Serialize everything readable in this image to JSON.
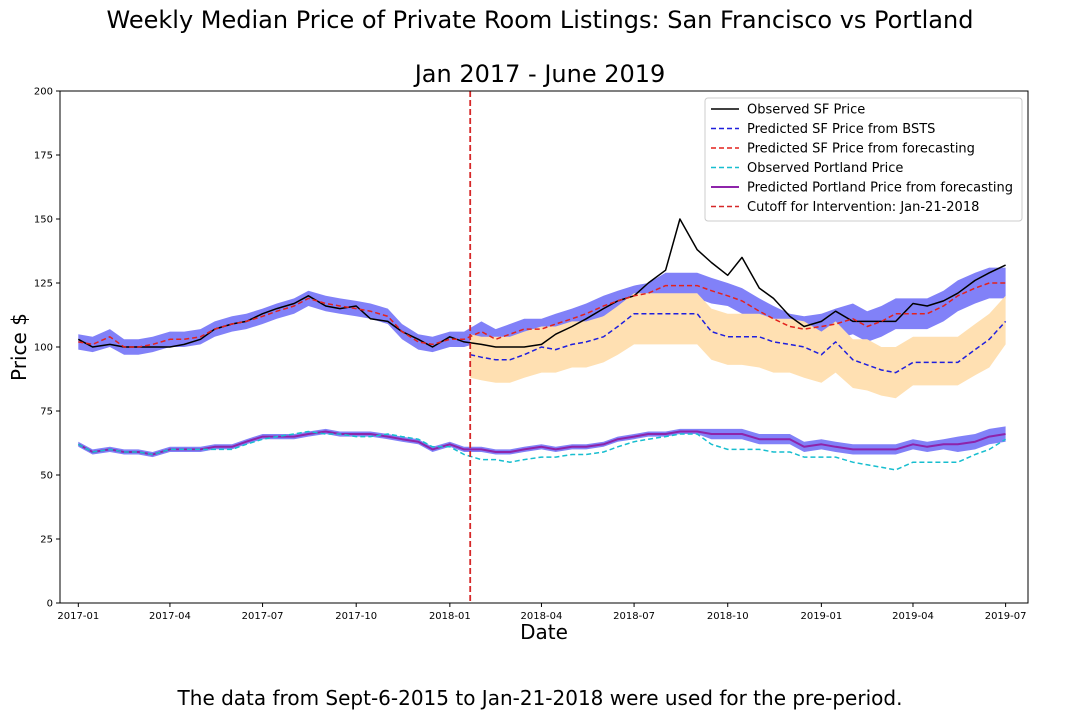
{
  "title_line1": "Weekly Median Price of Private Room Listings: San Francisco vs Portland",
  "title_line2": "Jan 2017 - June 2019",
  "caption": "The data from Sept-6-2015 to Jan-21-2018 were used for the pre-period.",
  "chart_data": {
    "type": "line",
    "xlabel": "Date",
    "ylabel": "Price $",
    "xlim": [
      "2016-12-14",
      "2019-07-23"
    ],
    "ylim": [
      0,
      200
    ],
    "yticks": [
      0,
      25,
      50,
      75,
      100,
      125,
      150,
      175,
      200
    ],
    "xticks": [
      "2017-01",
      "2017-04",
      "2017-07",
      "2017-10",
      "2018-01",
      "2018-04",
      "2018-07",
      "2018-10",
      "2019-01",
      "2019-04",
      "2019-07"
    ],
    "legend_position": "top-right",
    "cutoff": {
      "date": "2018-01-21",
      "label": "Cutoff for Intervention: Jan-21-2018",
      "color": "#d62728"
    },
    "series": [
      {
        "name": "Observed SF Price",
        "color": "#000000",
        "style": "solid",
        "x": [
          "2017-01-01",
          "2017-01-15",
          "2017-02-01",
          "2017-02-15",
          "2017-03-01",
          "2017-03-15",
          "2017-04-01",
          "2017-04-15",
          "2017-05-01",
          "2017-05-15",
          "2017-06-01",
          "2017-06-15",
          "2017-07-01",
          "2017-07-15",
          "2017-08-01",
          "2017-08-15",
          "2017-09-01",
          "2017-09-15",
          "2017-10-01",
          "2017-10-15",
          "2017-11-01",
          "2017-11-15",
          "2017-12-01",
          "2017-12-15",
          "2018-01-01",
          "2018-01-15",
          "2018-02-01",
          "2018-02-15",
          "2018-03-01",
          "2018-03-15",
          "2018-04-01",
          "2018-04-15",
          "2018-05-01",
          "2018-05-15",
          "2018-06-01",
          "2018-06-15",
          "2018-07-01",
          "2018-07-15",
          "2018-08-01",
          "2018-08-15",
          "2018-09-01",
          "2018-09-15",
          "2018-10-01",
          "2018-10-15",
          "2018-11-01",
          "2018-11-15",
          "2018-12-01",
          "2018-12-15",
          "2019-01-01",
          "2019-01-15",
          "2019-02-01",
          "2019-02-15",
          "2019-03-01",
          "2019-03-15",
          "2019-04-01",
          "2019-04-15",
          "2019-05-01",
          "2019-05-15",
          "2019-06-01",
          "2019-06-15",
          "2019-07-01"
        ],
        "values": [
          103,
          100,
          101,
          100,
          100,
          100,
          100,
          101,
          103,
          107,
          109,
          110,
          113,
          115,
          117,
          120,
          116,
          115,
          116,
          111,
          110,
          106,
          103,
          100,
          104,
          102,
          101,
          100,
          100,
          100,
          101,
          105,
          108,
          111,
          115,
          118,
          120,
          125,
          130,
          150,
          138,
          133,
          128,
          135,
          123,
          119,
          112,
          108,
          110,
          114,
          110,
          110,
          110,
          110,
          117,
          116,
          118,
          121,
          126,
          129,
          132
        ]
      },
      {
        "name": "Predicted SF Price from BSTS",
        "color": "#1f1fdd",
        "style": "dashed",
        "x": [
          "2018-01-21",
          "2018-02-01",
          "2018-02-15",
          "2018-03-01",
          "2018-03-15",
          "2018-04-01",
          "2018-04-15",
          "2018-05-01",
          "2018-05-15",
          "2018-06-01",
          "2018-06-15",
          "2018-07-01",
          "2018-07-15",
          "2018-08-01",
          "2018-08-15",
          "2018-09-01",
          "2018-09-15",
          "2018-10-01",
          "2018-10-15",
          "2018-11-01",
          "2018-11-15",
          "2018-12-01",
          "2018-12-15",
          "2019-01-01",
          "2019-01-15",
          "2019-02-01",
          "2019-02-15",
          "2019-03-01",
          "2019-03-15",
          "2019-04-01",
          "2019-04-15",
          "2019-05-01",
          "2019-05-15",
          "2019-06-01",
          "2019-06-15",
          "2019-07-01"
        ],
        "values": [
          97,
          96,
          95,
          95,
          97,
          100,
          99,
          101,
          102,
          104,
          108,
          113,
          113,
          113,
          113,
          113,
          106,
          104,
          104,
          104,
          102,
          101,
          100,
          97,
          102,
          95,
          93,
          91,
          90,
          94,
          94,
          94,
          94,
          99,
          103,
          110
        ]
      },
      {
        "name": "Predicted SF Price from forecasting",
        "color": "#e3221c",
        "style": "dashed",
        "x": [
          "2017-01-01",
          "2017-01-15",
          "2017-02-01",
          "2017-02-15",
          "2017-03-01",
          "2017-03-15",
          "2017-04-01",
          "2017-04-15",
          "2017-05-01",
          "2017-05-15",
          "2017-06-01",
          "2017-06-15",
          "2017-07-01",
          "2017-07-15",
          "2017-08-01",
          "2017-08-15",
          "2017-09-01",
          "2017-09-15",
          "2017-10-01",
          "2017-10-15",
          "2017-11-01",
          "2017-11-15",
          "2017-12-01",
          "2017-12-15",
          "2018-01-01",
          "2018-01-15",
          "2018-02-01",
          "2018-02-15",
          "2018-03-01",
          "2018-03-15",
          "2018-04-01",
          "2018-04-15",
          "2018-05-01",
          "2018-05-15",
          "2018-06-01",
          "2018-06-15",
          "2018-07-01",
          "2018-07-15",
          "2018-08-01",
          "2018-08-15",
          "2018-09-01",
          "2018-09-15",
          "2018-10-01",
          "2018-10-15",
          "2018-11-01",
          "2018-11-15",
          "2018-12-01",
          "2018-12-15",
          "2019-01-01",
          "2019-01-15",
          "2019-02-01",
          "2019-02-15",
          "2019-03-01",
          "2019-03-15",
          "2019-04-01",
          "2019-04-15",
          "2019-05-01",
          "2019-05-15",
          "2019-06-01",
          "2019-06-15",
          "2019-07-01"
        ],
        "values": [
          102,
          101,
          104,
          100,
          100,
          101,
          103,
          103,
          104,
          107,
          109,
          110,
          112,
          114,
          116,
          119,
          117,
          116,
          115,
          114,
          112,
          106,
          102,
          101,
          103,
          103,
          106,
          103,
          105,
          107,
          107,
          109,
          111,
          113,
          116,
          118,
          120,
          121,
          124,
          124,
          124,
          122,
          120,
          118,
          114,
          111,
          108,
          107,
          108,
          109,
          111,
          108,
          110,
          113,
          113,
          113,
          116,
          120,
          123,
          125,
          125
        ]
      },
      {
        "name": "Observed Portland Price",
        "color": "#17becf",
        "style": "dashed",
        "x": [
          "2017-01-01",
          "2017-01-15",
          "2017-02-01",
          "2017-02-15",
          "2017-03-01",
          "2017-03-15",
          "2017-04-01",
          "2017-04-15",
          "2017-05-01",
          "2017-05-15",
          "2017-06-01",
          "2017-06-15",
          "2017-07-01",
          "2017-07-15",
          "2017-08-01",
          "2017-08-15",
          "2017-09-01",
          "2017-09-15",
          "2017-10-01",
          "2017-10-15",
          "2017-11-01",
          "2017-11-15",
          "2017-12-01",
          "2017-12-15",
          "2018-01-01",
          "2018-01-15",
          "2018-02-01",
          "2018-02-15",
          "2018-03-01",
          "2018-03-15",
          "2018-04-01",
          "2018-04-15",
          "2018-05-01",
          "2018-05-15",
          "2018-06-01",
          "2018-06-15",
          "2018-07-01",
          "2018-07-15",
          "2018-08-01",
          "2018-08-15",
          "2018-09-01",
          "2018-09-15",
          "2018-10-01",
          "2018-10-15",
          "2018-11-01",
          "2018-11-15",
          "2018-12-01",
          "2018-12-15",
          "2019-01-01",
          "2019-01-15",
          "2019-02-01",
          "2019-02-15",
          "2019-03-01",
          "2019-03-15",
          "2019-04-01",
          "2019-04-15",
          "2019-05-01",
          "2019-05-15",
          "2019-06-01",
          "2019-06-15",
          "2019-07-01"
        ],
        "values": [
          62,
          59,
          60,
          59,
          59,
          58,
          60,
          60,
          60,
          60,
          60,
          62,
          64,
          65,
          66,
          67,
          66,
          66,
          65,
          65,
          66,
          65,
          64,
          61,
          61,
          58,
          56,
          56,
          55,
          56,
          57,
          57,
          58,
          58,
          59,
          61,
          63,
          64,
          65,
          66,
          66,
          62,
          60,
          60,
          60,
          59,
          59,
          57,
          57,
          57,
          55,
          54,
          53,
          52,
          55,
          55,
          55,
          55,
          58,
          60,
          64
        ]
      },
      {
        "name": "Predicted Portland Price from forecasting",
        "color": "#8e24aa",
        "style": "solid",
        "x": [
          "2017-01-01",
          "2017-01-15",
          "2017-02-01",
          "2017-02-15",
          "2017-03-01",
          "2017-03-15",
          "2017-04-01",
          "2017-04-15",
          "2017-05-01",
          "2017-05-15",
          "2017-06-01",
          "2017-06-15",
          "2017-07-01",
          "2017-07-15",
          "2017-08-01",
          "2017-08-15",
          "2017-09-01",
          "2017-09-15",
          "2017-10-01",
          "2017-10-15",
          "2017-11-01",
          "2017-11-15",
          "2017-12-01",
          "2017-12-15",
          "2018-01-01",
          "2018-01-15",
          "2018-02-01",
          "2018-02-15",
          "2018-03-01",
          "2018-03-15",
          "2018-04-01",
          "2018-04-15",
          "2018-05-01",
          "2018-05-15",
          "2018-06-01",
          "2018-06-15",
          "2018-07-01",
          "2018-07-15",
          "2018-08-01",
          "2018-08-15",
          "2018-09-01",
          "2018-09-15",
          "2018-10-01",
          "2018-10-15",
          "2018-11-01",
          "2018-11-15",
          "2018-12-01",
          "2018-12-15",
          "2019-01-01",
          "2019-01-15",
          "2019-02-01",
          "2019-02-15",
          "2019-03-01",
          "2019-03-15",
          "2019-04-01",
          "2019-04-15",
          "2019-05-01",
          "2019-05-15",
          "2019-06-01",
          "2019-06-15",
          "2019-07-01"
        ],
        "values": [
          62,
          59,
          60,
          59,
          59,
          58,
          60,
          60,
          60,
          61,
          61,
          63,
          65,
          65,
          65,
          66,
          67,
          66,
          66,
          66,
          65,
          64,
          63,
          60,
          62,
          60,
          60,
          59,
          59,
          60,
          61,
          60,
          61,
          61,
          62,
          64,
          65,
          66,
          66,
          67,
          67,
          66,
          66,
          66,
          64,
          64,
          64,
          61,
          62,
          61,
          60,
          60,
          60,
          60,
          62,
          61,
          62,
          62,
          63,
          65,
          66
        ]
      }
    ],
    "bands": [
      {
        "of": "Predicted SF Price from forecasting",
        "color": "#6b6bf7",
        "lower": [
          99,
          98,
          100,
          97,
          97,
          98,
          100,
          100,
          101,
          104,
          106,
          107,
          109,
          111,
          113,
          116,
          114,
          113,
          112,
          111,
          109,
          103,
          99,
          98,
          100,
          100,
          102,
          99,
          101,
          103,
          103,
          105,
          107,
          109,
          112,
          114,
          116,
          117,
          119,
          119,
          119,
          117,
          116,
          113,
          109,
          106,
          103,
          102,
          103,
          103,
          105,
          102,
          104,
          107,
          107,
          107,
          110,
          114,
          117,
          119,
          119
        ],
        "upper": [
          105,
          104,
          107,
          103,
          103,
          104,
          106,
          106,
          107,
          110,
          112,
          113,
          115,
          117,
          119,
          122,
          120,
          119,
          118,
          117,
          115,
          109,
          105,
          104,
          106,
          106,
          110,
          107,
          109,
          111,
          111,
          113,
          115,
          117,
          120,
          122,
          124,
          125,
          129,
          129,
          129,
          127,
          125,
          123,
          119,
          116,
          113,
          112,
          113,
          115,
          117,
          114,
          116,
          119,
          119,
          119,
          122,
          126,
          129,
          131,
          131
        ]
      },
      {
        "of": "Predicted SF Price from BSTS",
        "color": "#ffe0b2",
        "x": [
          "2018-01-21",
          "2018-02-01",
          "2018-02-15",
          "2018-03-01",
          "2018-03-15",
          "2018-04-01",
          "2018-04-15",
          "2018-05-01",
          "2018-05-15",
          "2018-06-01",
          "2018-06-15",
          "2018-07-01",
          "2018-07-15",
          "2018-08-01",
          "2018-08-15",
          "2018-09-01",
          "2018-09-15",
          "2018-10-01",
          "2018-10-15",
          "2018-11-01",
          "2018-11-15",
          "2018-12-01",
          "2018-12-15",
          "2019-01-01",
          "2019-01-15",
          "2019-02-01",
          "2019-02-15",
          "2019-03-01",
          "2019-03-15",
          "2019-04-01",
          "2019-04-15",
          "2019-05-01",
          "2019-05-15",
          "2019-06-01",
          "2019-06-15",
          "2019-07-01"
        ],
        "lower": [
          88,
          87,
          86,
          86,
          88,
          90,
          90,
          92,
          92,
          94,
          97,
          101,
          101,
          101,
          101,
          101,
          95,
          93,
          93,
          92,
          90,
          90,
          88,
          86,
          90,
          84,
          83,
          81,
          80,
          85,
          85,
          85,
          85,
          89,
          92,
          101
        ],
        "upper": [
          105,
          104,
          104,
          104,
          106,
          108,
          108,
          110,
          110,
          112,
          116,
          121,
          121,
          121,
          121,
          121,
          115,
          113,
          113,
          113,
          111,
          111,
          110,
          106,
          110,
          103,
          103,
          100,
          100,
          104,
          104,
          104,
          104,
          109,
          113,
          120
        ]
      },
      {
        "of": "Predicted Portland Price from forecasting",
        "color": "#6b6bf7",
        "lower": [
          61,
          58,
          59,
          58,
          58,
          57,
          59,
          59,
          59,
          60,
          60,
          62,
          64,
          64,
          64,
          65,
          66,
          65,
          65,
          65,
          64,
          63,
          62,
          59,
          61,
          59,
          59,
          58,
          58,
          59,
          60,
          59,
          60,
          60,
          61,
          63,
          64,
          65,
          65,
          66,
          66,
          64,
          64,
          64,
          62,
          62,
          62,
          59,
          60,
          59,
          58,
          58,
          58,
          58,
          60,
          59,
          60,
          59,
          60,
          62,
          63
        ],
        "upper": [
          63,
          60,
          61,
          60,
          60,
          59,
          61,
          61,
          61,
          62,
          62,
          64,
          66,
          66,
          66,
          67,
          68,
          67,
          67,
          67,
          66,
          65,
          64,
          61,
          63,
          61,
          61,
          60,
          60,
          61,
          62,
          61,
          62,
          62,
          63,
          65,
          66,
          67,
          67,
          68,
          68,
          68,
          68,
          68,
          66,
          66,
          66,
          63,
          64,
          63,
          62,
          62,
          62,
          62,
          64,
          63,
          64,
          65,
          66,
          68,
          69
        ]
      }
    ]
  }
}
